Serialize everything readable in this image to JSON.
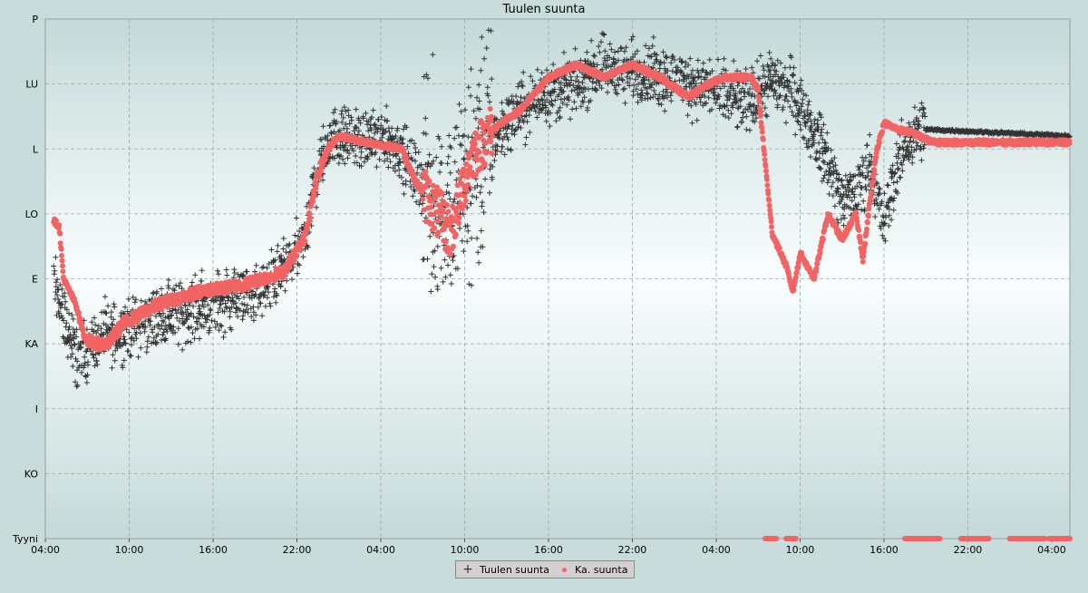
{
  "chart_data": {
    "type": "scatter",
    "title": "Tuulen suunta",
    "y_categories": [
      "Tyyni",
      "KO",
      "I",
      "KA",
      "E",
      "LO",
      "L",
      "LU",
      "P"
    ],
    "x_tick_labels": [
      "04:00",
      "10:00",
      "16:00",
      "22:00",
      "04:00",
      "10:00",
      "16:00",
      "22:00",
      "04:00",
      "10:00",
      "16:00",
      "22:00",
      "04:00"
    ],
    "x_range_hours": [
      0,
      73.3
    ],
    "y_range_index": [
      0,
      8
    ],
    "grid": true,
    "legend_placement": "bottom-center",
    "series": [
      {
        "name": "Tuulen suunta",
        "marker": "plus",
        "color": "#333333",
        "trend": [
          [
            0.6,
            4.0
          ],
          [
            1.3,
            3.4
          ],
          [
            2.2,
            2.8
          ],
          [
            3.5,
            3.0
          ],
          [
            5.0,
            3.2
          ],
          [
            8.0,
            3.4
          ],
          [
            12.0,
            3.6
          ],
          [
            15.5,
            3.8
          ],
          [
            17.0,
            4.1
          ],
          [
            18.5,
            4.6
          ],
          [
            19.5,
            5.7
          ],
          [
            20.5,
            6.2
          ],
          [
            25.0,
            6.1
          ],
          [
            26.5,
            5.6
          ],
          [
            28.5,
            5.1
          ],
          [
            30.0,
            5.4
          ],
          [
            31.5,
            6.0
          ],
          [
            33.0,
            6.4
          ],
          [
            35.0,
            6.8
          ],
          [
            38.0,
            7.0
          ],
          [
            40.0,
            7.3
          ],
          [
            42.0,
            7.2
          ],
          [
            45.0,
            7.1
          ],
          [
            48.0,
            6.9
          ],
          [
            50.0,
            6.7
          ],
          [
            52.0,
            7.0
          ],
          [
            53.5,
            6.9
          ],
          [
            56.0,
            5.8
          ],
          [
            57.0,
            5.2
          ],
          [
            58.0,
            5.3
          ],
          [
            59.0,
            5.8
          ],
          [
            60.0,
            4.8
          ],
          [
            61.0,
            5.8
          ],
          [
            62.0,
            6.2
          ],
          [
            63.0,
            6.3
          ],
          [
            73.3,
            6.2
          ]
        ],
        "spread_idx": 0.45
      },
      {
        "name": "Ka. suunta",
        "marker": "dot",
        "color": "#f26464",
        "trend": [
          [
            0.6,
            4.9
          ],
          [
            1.0,
            4.8
          ],
          [
            1.3,
            4.0
          ],
          [
            2.2,
            3.6
          ],
          [
            2.8,
            3.1
          ],
          [
            3.5,
            3.0
          ],
          [
            4.5,
            3.0
          ],
          [
            5.5,
            3.3
          ],
          [
            8.0,
            3.6
          ],
          [
            11.0,
            3.8
          ],
          [
            14.0,
            3.9
          ],
          [
            17.0,
            4.1
          ],
          [
            18.5,
            4.6
          ],
          [
            19.5,
            5.6
          ],
          [
            20.2,
            6.0
          ],
          [
            21.0,
            6.2
          ],
          [
            23.0,
            6.1
          ],
          [
            25.5,
            6.0
          ],
          [
            26.5,
            5.5
          ],
          [
            27.5,
            5.2
          ],
          [
            29.0,
            4.7
          ],
          [
            30.5,
            5.9
          ],
          [
            32.0,
            6.3
          ],
          [
            34.0,
            6.6
          ],
          [
            36.0,
            7.1
          ],
          [
            38.0,
            7.3
          ],
          [
            40.0,
            7.1
          ],
          [
            42.0,
            7.3
          ],
          [
            44.0,
            7.1
          ],
          [
            46.0,
            6.8
          ],
          [
            47.5,
            7.0
          ],
          [
            48.5,
            7.1
          ],
          [
            50.5,
            7.1
          ],
          [
            51.0,
            6.9
          ],
          [
            52.0,
            4.7
          ],
          [
            53.0,
            4.2
          ],
          [
            53.5,
            3.8
          ],
          [
            54.0,
            4.4
          ],
          [
            55.0,
            4.0
          ],
          [
            56.0,
            5.0
          ],
          [
            57.0,
            4.6
          ],
          [
            58.0,
            5.0
          ],
          [
            58.5,
            4.3
          ],
          [
            59.0,
            5.2
          ],
          [
            59.5,
            6.0
          ],
          [
            60.0,
            6.4
          ],
          [
            61.0,
            6.3
          ],
          [
            62.0,
            6.25
          ],
          [
            63.5,
            6.1
          ],
          [
            73.3,
            6.1
          ]
        ],
        "calm_segments": [
          [
            51.5,
            52.3
          ],
          [
            53.0,
            53.7
          ],
          [
            61.5,
            64.0
          ],
          [
            65.5,
            67.5
          ],
          [
            69.0,
            71.5
          ],
          [
            71.8,
            73.3
          ]
        ]
      }
    ]
  },
  "legend": {
    "items": [
      {
        "label": "Tuulen suunta",
        "icon": "plus-marker-icon"
      },
      {
        "label": "Ka. suunta",
        "icon": "dot-marker-icon"
      }
    ]
  }
}
